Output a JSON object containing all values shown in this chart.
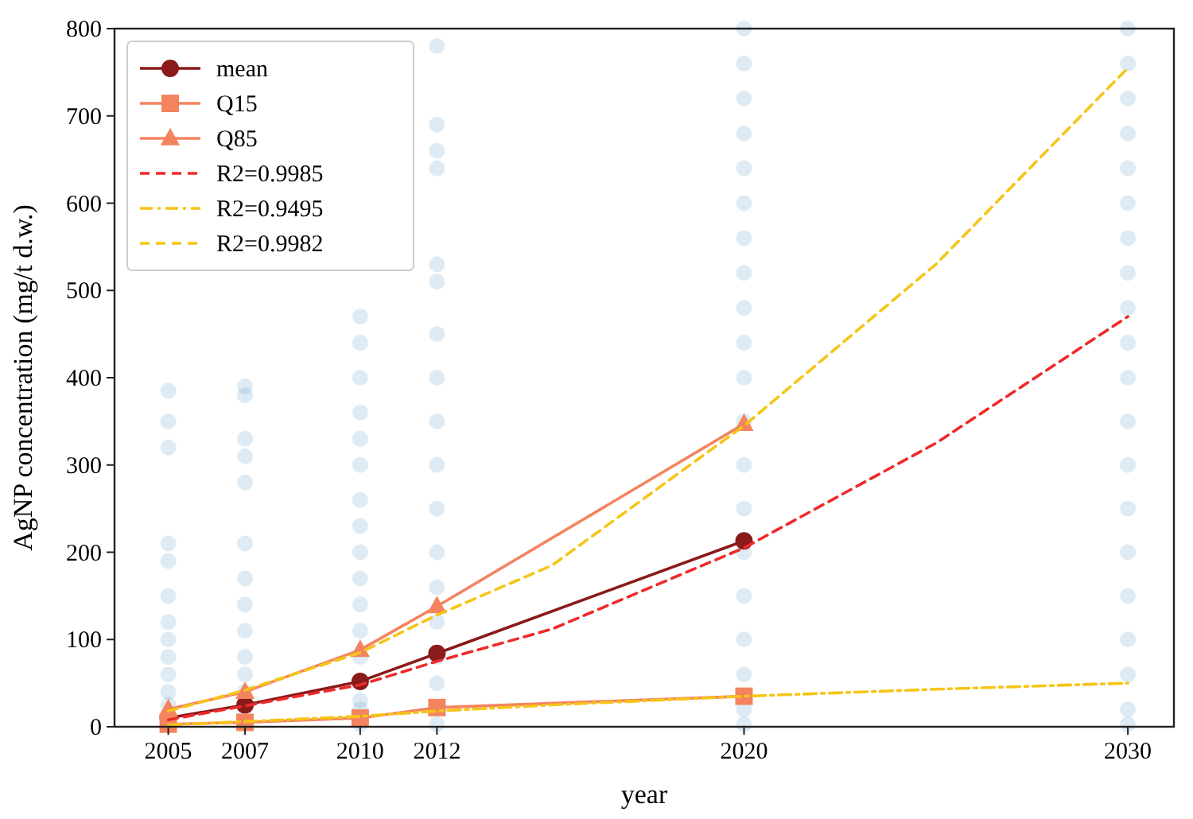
{
  "chart_data": {
    "type": "line",
    "xlabel": "year",
    "ylabel": "AgNP concentration (mg/t d.w.)",
    "xlim": [
      2003.6,
      2031.2
    ],
    "ylim": [
      0,
      800
    ],
    "xticks": [
      2005,
      2007,
      2010,
      2012,
      2020,
      2030
    ],
    "yticks": [
      0,
      100,
      200,
      300,
      400,
      500,
      600,
      700,
      800
    ],
    "grid": false,
    "legend": "top left",
    "series": [
      {
        "type": "scatter",
        "color": "#1f77b4",
        "marker": "circle",
        "x": [
          2005,
          2005,
          2005,
          2005,
          2005,
          2005,
          2005,
          2005,
          2005,
          2005,
          2005,
          2005,
          2007,
          2007,
          2007,
          2007,
          2007,
          2007,
          2007,
          2007,
          2007,
          2007,
          2007,
          2007,
          2007,
          2010,
          2010,
          2010,
          2010,
          2010,
          2010,
          2010,
          2010,
          2010,
          2010,
          2010,
          2010,
          2010,
          2010,
          2010,
          2010,
          2012,
          2012,
          2012,
          2012,
          2012,
          2012,
          2012,
          2012,
          2012,
          2012,
          2012,
          2012,
          2012,
          2012,
          2012,
          2012,
          2012,
          2020,
          2020,
          2020,
          2020,
          2020,
          2020,
          2020,
          2020,
          2020,
          2020,
          2020,
          2020,
          2020,
          2020,
          2020,
          2020,
          2020,
          2020,
          2020,
          2020,
          2030,
          2030,
          2030,
          2030,
          2030,
          2030,
          2030,
          2030,
          2030,
          2030,
          2030,
          2030,
          2030,
          2030,
          2030,
          2030,
          2030,
          2030,
          2030,
          2030
        ],
        "values": [
          385,
          350,
          320,
          210,
          190,
          150,
          120,
          100,
          80,
          60,
          40,
          25,
          390,
          380,
          330,
          310,
          280,
          210,
          170,
          140,
          110,
          80,
          60,
          40,
          20,
          470,
          440,
          400,
          360,
          330,
          300,
          260,
          230,
          200,
          170,
          140,
          110,
          80,
          30,
          20,
          3,
          780,
          690,
          660,
          640,
          530,
          510,
          450,
          400,
          350,
          300,
          250,
          200,
          160,
          120,
          80,
          50,
          3,
          800,
          760,
          720,
          680,
          640,
          600,
          560,
          520,
          480,
          440,
          400,
          350,
          300,
          250,
          200,
          150,
          100,
          60,
          20,
          3,
          800,
          760,
          720,
          680,
          640,
          600,
          560,
          520,
          480,
          440,
          400,
          350,
          300,
          250,
          200,
          150,
          100,
          60,
          20,
          3
        ]
      },
      {
        "name": "mean",
        "color": "#8b1a1a",
        "marker": "circle",
        "line_style": "solid",
        "x": [
          2005,
          2007,
          2010,
          2012,
          2020
        ],
        "values": [
          10,
          25,
          52,
          84,
          213
        ]
      },
      {
        "name": "Q15",
        "color": "#f4845f",
        "marker": "square",
        "line_style": "solid",
        "x": [
          2005,
          2007,
          2010,
          2012,
          2020
        ],
        "values": [
          3,
          5,
          10,
          22,
          35
        ]
      },
      {
        "name": "Q85",
        "color": "#f4845f",
        "marker": "triangle",
        "line_style": "solid",
        "x": [
          2005,
          2007,
          2010,
          2012,
          2020
        ],
        "values": [
          20,
          40,
          88,
          138,
          347
        ]
      },
      {
        "name": "R2=0.9985",
        "color": "#ee2a2a",
        "marker": "none",
        "line_style": "dashed",
        "x": [
          2005,
          2007,
          2010,
          2012,
          2015,
          2020,
          2025,
          2030
        ],
        "values": [
          8,
          24,
          48,
          75,
          112,
          205,
          325,
          470
        ]
      },
      {
        "name": "R2=0.9495",
        "color": "#f5c518",
        "marker": "none",
        "line_style": "dotted",
        "x": [
          2005,
          2007,
          2010,
          2012,
          2015,
          2020,
          2025,
          2030
        ],
        "values": [
          2,
          6,
          12,
          18,
          25,
          35,
          43,
          50
        ]
      },
      {
        "name": "R2=0.9982",
        "color": "#f5c518",
        "marker": "none",
        "line_style": "dashed",
        "x": [
          2005,
          2007,
          2010,
          2012,
          2015,
          2020,
          2025,
          2030
        ],
        "values": [
          18,
          42,
          85,
          128,
          185,
          345,
          530,
          755
        ]
      }
    ]
  }
}
